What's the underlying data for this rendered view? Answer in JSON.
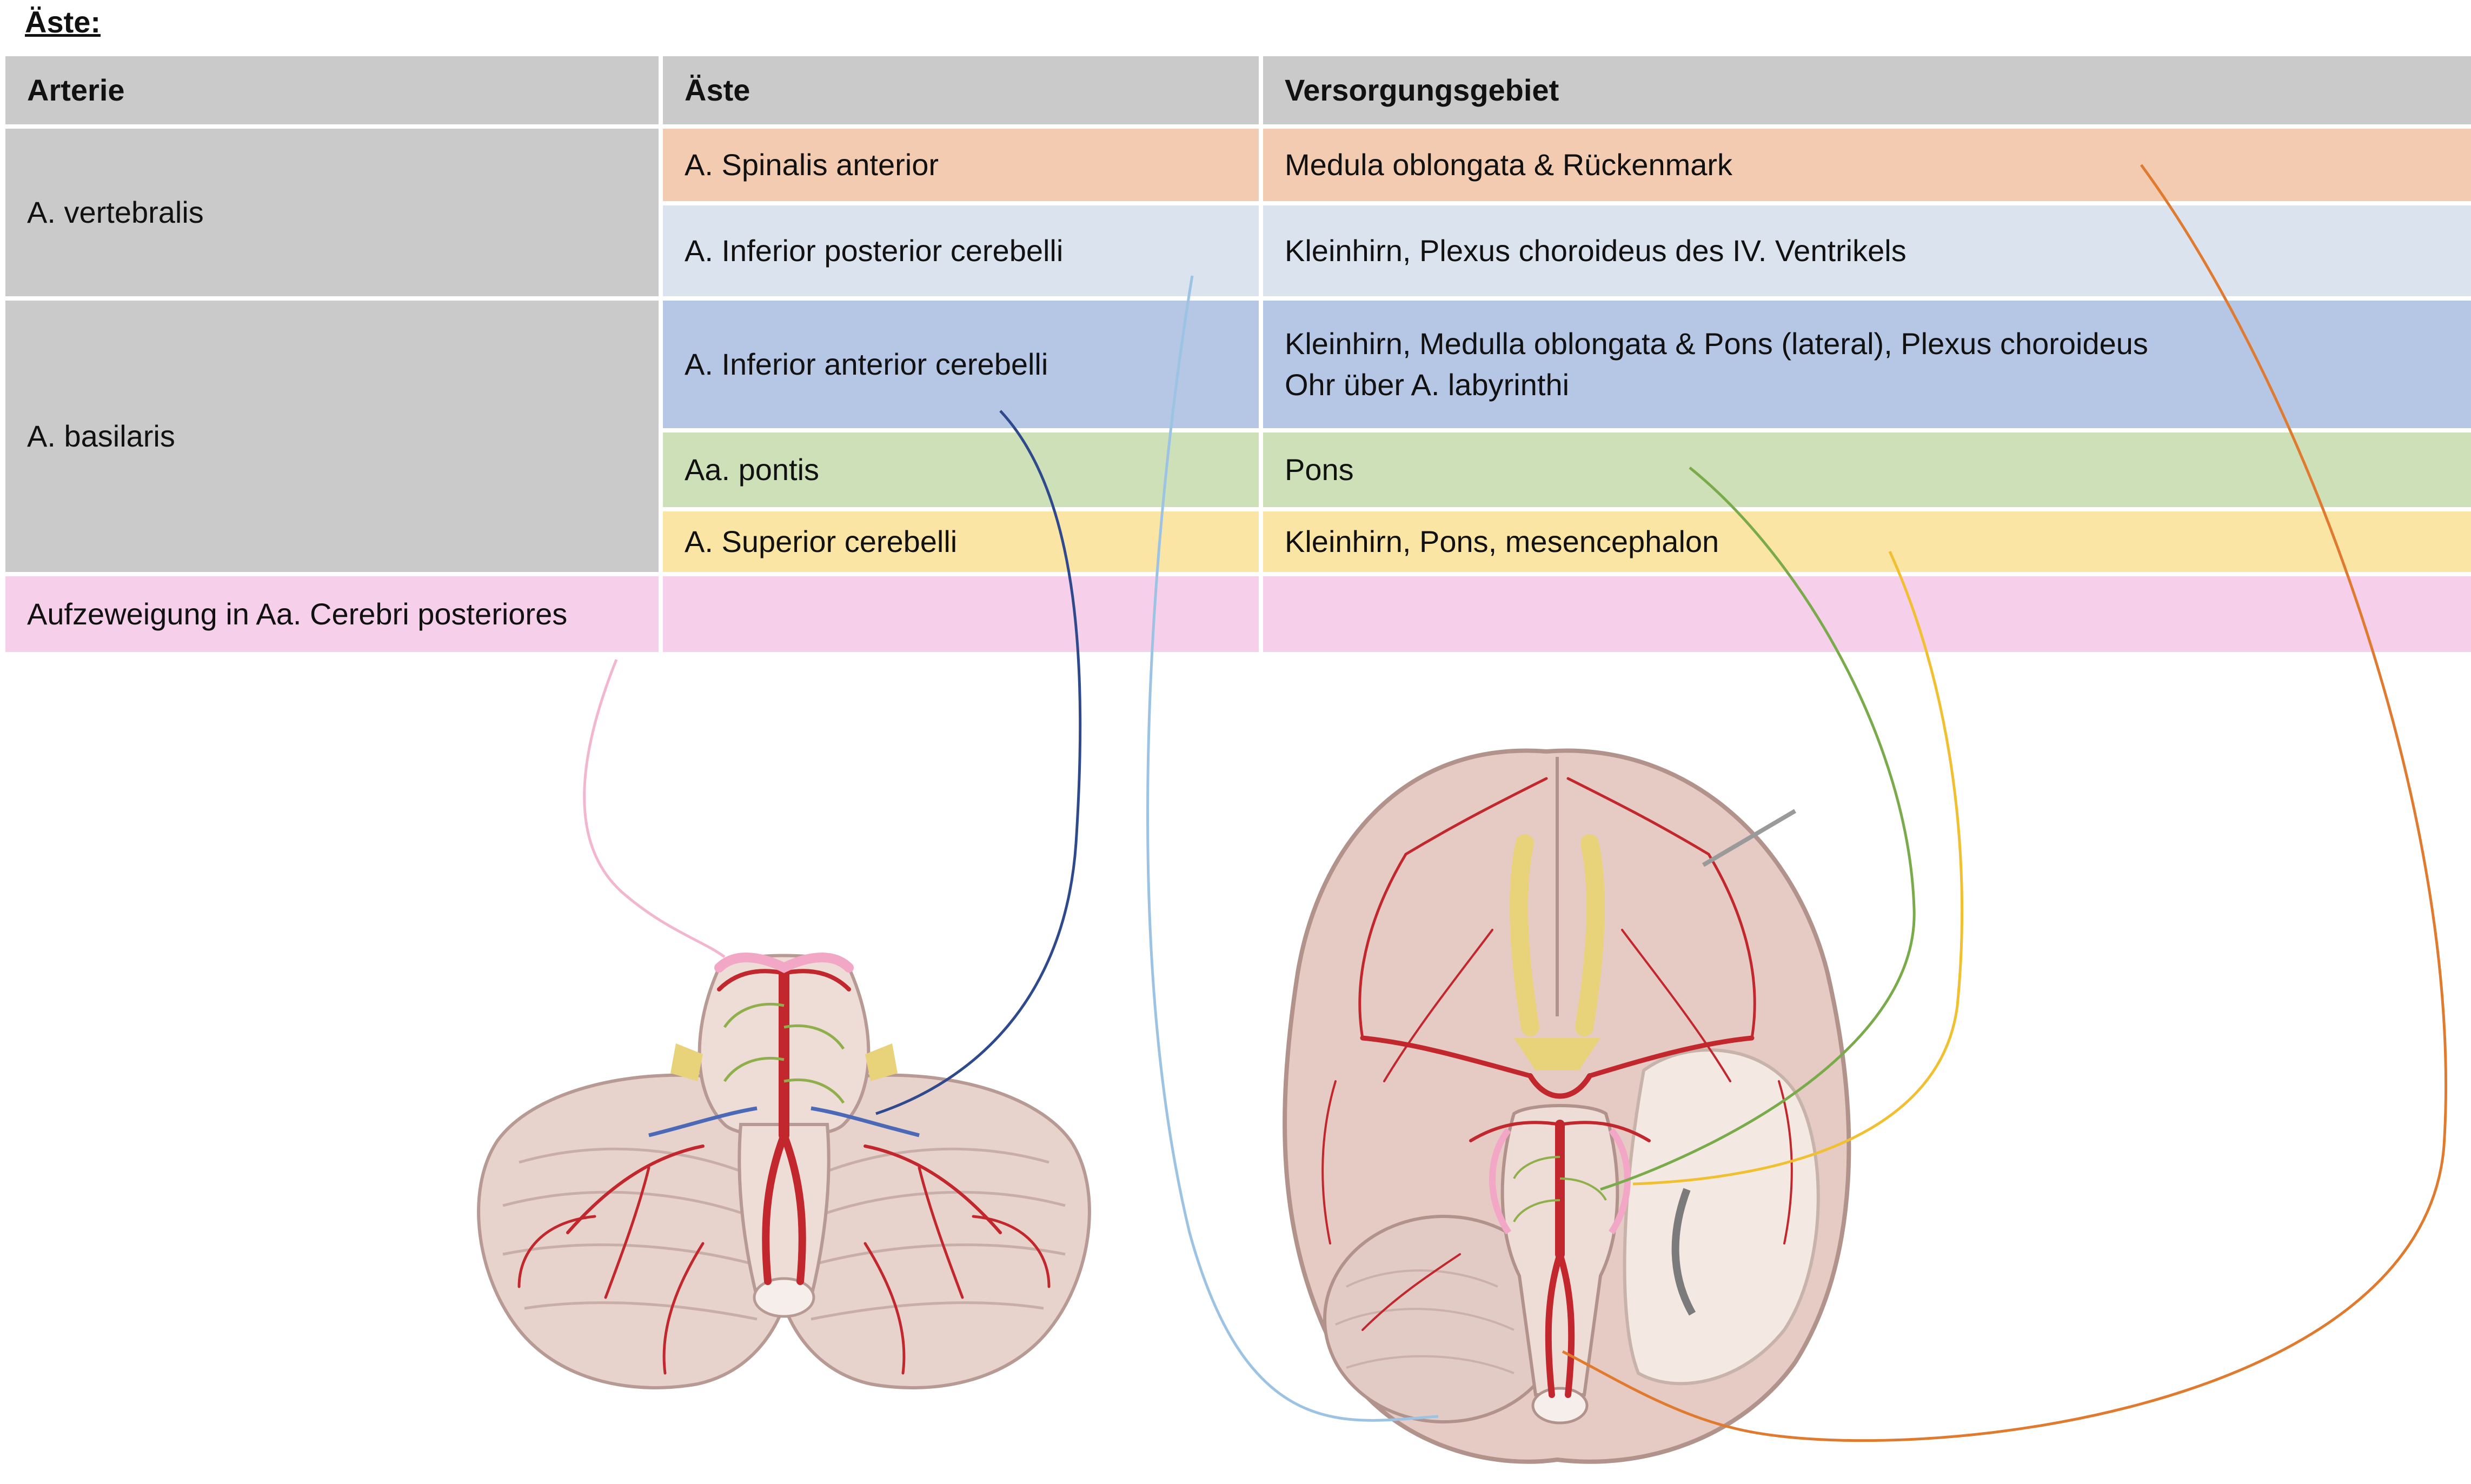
{
  "heading": "Äste:",
  "table": {
    "headers": [
      "Arterie",
      "Äste",
      "Versorgungsgebiet"
    ],
    "vertebralis": {
      "artery": "A. vertebralis",
      "rows": [
        {
          "branch": "A. Spinalis anterior",
          "area": "Medula oblongata & Rückenmark"
        },
        {
          "branch": "A. Inferior posterior cerebelli",
          "area": "Kleinhirn, Plexus choroideus des IV. Ventrikels"
        }
      ]
    },
    "basilaris": {
      "artery": "A. basilaris",
      "rows": [
        {
          "branch": "A. Inferior anterior cerebelli",
          "area_line1": "Kleinhirn, Medulla oblongata & Pons (lateral), Plexus choroideus",
          "area_line2": "Ohr über A. labyrinthi"
        },
        {
          "branch": "Aa. pontis",
          "area": "Pons"
        },
        {
          "branch": "A. Superior cerebelli",
          "area": "Kleinhirn, Pons, mesencephalon"
        }
      ]
    },
    "posterior": {
      "artery": "Aufzeweigung in Aa. Cerebri posteriores"
    }
  },
  "colors": {
    "header": "#cbcaca",
    "spinalis_anterior": "#f2cbb0",
    "inferior_posterior_cerebelli": "#dbe3ef",
    "inferior_anterior_cerebelli": "#b5c7e5",
    "pontis": "#cde0b8",
    "superior_cerebelli": "#fbe5a4",
    "cerebri_posteriores": "#f6d0ea",
    "line_orange": "#e07a2e",
    "line_lightblue": "#9cc3e3",
    "line_darkblue": "#2f4a8c",
    "line_green": "#7aab4a",
    "line_yellow": "#f0c030",
    "line_pink": "#f3b6cf",
    "artery_red": "#c1272d",
    "brain_tissue": "#e9d3cc"
  },
  "illustration": {
    "left": "cerebellum-brainstem-anterior-view",
    "right": "brain-inferior-view"
  }
}
